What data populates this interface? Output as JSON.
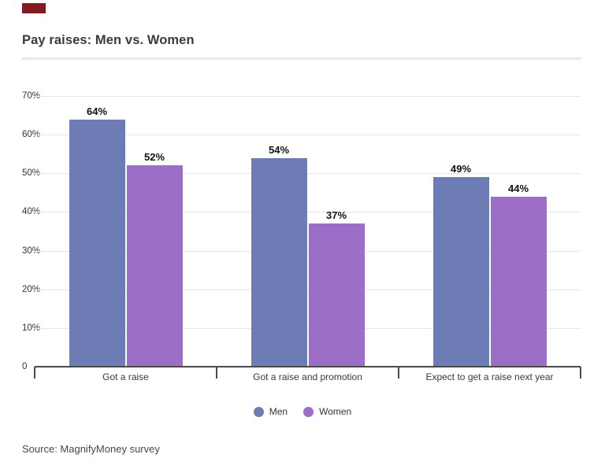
{
  "title": "Pay raises: Men vs. Women",
  "source": "Source: MagnifyMoney survey",
  "colors": {
    "men": "#6d7cb5",
    "women": "#9d6ec7",
    "brand_tab": "#821c22",
    "axis": "#4b4b4b",
    "gridline": "#e7e7e7",
    "title_text": "#3b3b3d"
  },
  "chart_data": {
    "type": "bar",
    "title": "Pay raises: Men vs. Women",
    "categories": [
      "Got a raise",
      "Got a raise and promotion",
      "Expect to get a raise next year"
    ],
    "series": [
      {
        "name": "Men",
        "color": "#6d7cb5",
        "values": [
          64,
          54,
          49
        ],
        "labels": [
          "64%",
          "54%",
          "49%"
        ]
      },
      {
        "name": "Women",
        "color": "#9d6ec7",
        "values": [
          52,
          37,
          44
        ],
        "labels": [
          "52%",
          "37%",
          "44%"
        ]
      }
    ],
    "ylim": [
      0,
      70
    ],
    "yticks": [
      "70%",
      "60%",
      "50%",
      "40%",
      "30%",
      "20%",
      "10%",
      "0"
    ],
    "ytick_values": [
      70,
      60,
      50,
      40,
      30,
      20,
      10,
      0
    ],
    "grid": true,
    "legend_position": "bottom",
    "legend": [
      "Men",
      "Women"
    ],
    "source": "Source: MagnifyMoney survey"
  }
}
